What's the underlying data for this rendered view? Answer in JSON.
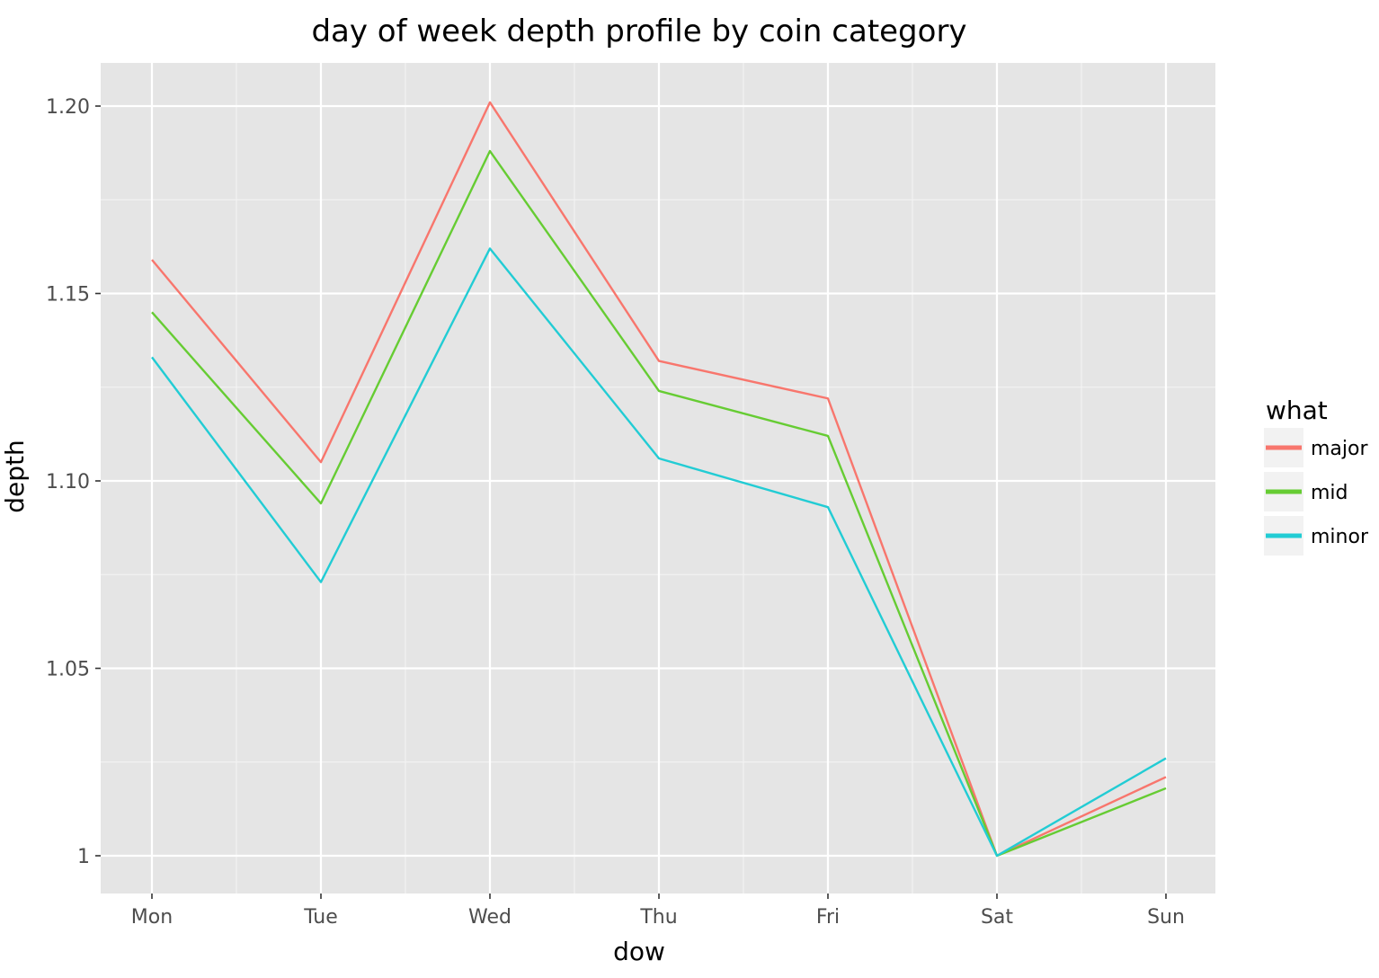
{
  "chart_data": {
    "type": "line",
    "title": "day of week depth profile by coin category",
    "xlabel": "dow",
    "ylabel": "depth",
    "categories": [
      "Mon",
      "Tue",
      "Wed",
      "Thu",
      "Fri",
      "Sat",
      "Sun"
    ],
    "ylim": [
      0.99,
      1.21
    ],
    "yticks": [
      1.0,
      1.05,
      1.1,
      1.15,
      1.2
    ],
    "ytick_labels": [
      "1",
      "1.05",
      "1.10",
      "1.15",
      "1.20"
    ],
    "grid": true,
    "legend": {
      "title": "what",
      "position": "right"
    },
    "series": [
      {
        "name": "major",
        "color": "#f8766d",
        "values": [
          1.159,
          1.105,
          1.201,
          1.132,
          1.122,
          1.0,
          1.021
        ]
      },
      {
        "name": "mid",
        "color": "#7cae00",
        "line_color": "#66cc33",
        "values": [
          1.145,
          1.094,
          1.188,
          1.124,
          1.112,
          1.0,
          1.018
        ]
      },
      {
        "name": "minor",
        "color": "#22ccd4",
        "values": [
          1.133,
          1.073,
          1.162,
          1.106,
          1.093,
          1.0,
          1.026
        ]
      }
    ],
    "colors": {
      "panel_background": "#e5e5e5",
      "grid_major": "#ffffff",
      "grid_minor": "#f2f2f2",
      "legend_key_background": "#f2f2f2"
    }
  }
}
